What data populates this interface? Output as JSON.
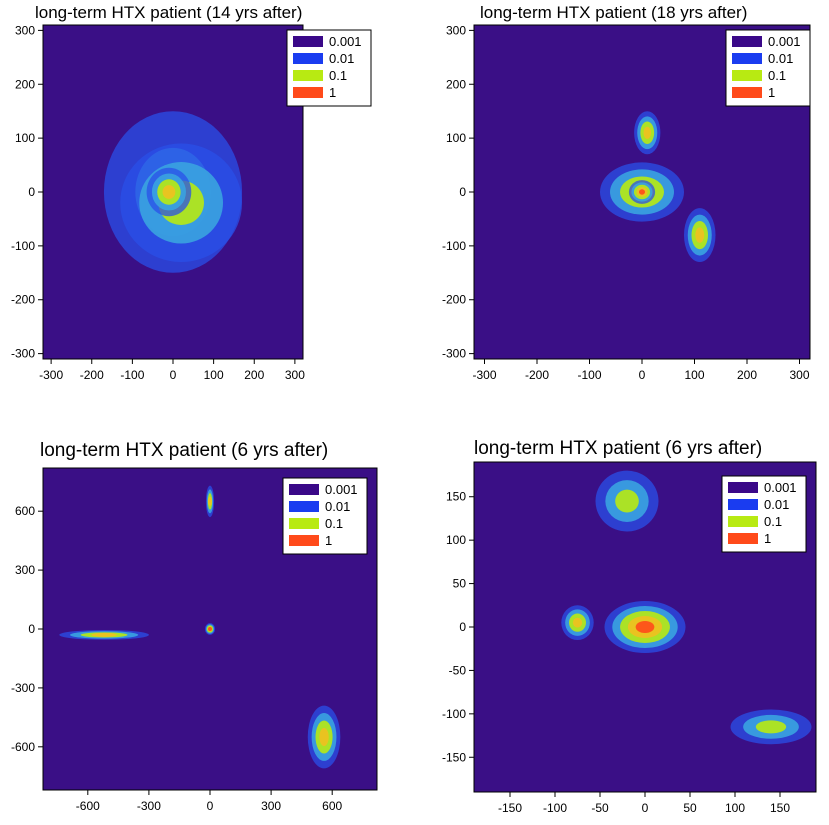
{
  "chart_data": [
    {
      "type": "heatmap",
      "title": "long-term  HTX patient (14 yrs after)",
      "xlim": [
        -320,
        320
      ],
      "ylim": [
        -310,
        310
      ],
      "xticks": [
        -300,
        -200,
        -100,
        0,
        100,
        200,
        300
      ],
      "yticks": [
        300,
        200,
        100,
        0,
        -100,
        -200,
        -300
      ],
      "legend": {
        "position": "top-right",
        "entries": [
          {
            "label": "0.001",
            "color": "#3a0888"
          },
          {
            "label": "0.01",
            "color": "#1a3cf0"
          },
          {
            "label": "0.1",
            "color": "#b8ea12"
          },
          {
            "label": "1",
            "color": "#ff4a1a"
          }
        ]
      },
      "background_color": "#3a0f86",
      "clusters": [
        {
          "x": 0,
          "y": 0,
          "sx": 170,
          "sy": 150,
          "level": "0.001"
        },
        {
          "x": 20,
          "y": -20,
          "sx": 150,
          "sy": 110,
          "level": "0.01"
        },
        {
          "x": -10,
          "y": 0,
          "sx": 55,
          "sy": 45,
          "level": "0.1"
        }
      ]
    },
    {
      "type": "heatmap",
      "title": "long-term  HTX patient (18 yrs after)",
      "xlim": [
        -320,
        320
      ],
      "ylim": [
        -310,
        310
      ],
      "xticks": [
        -300,
        -200,
        -100,
        0,
        100,
        200,
        300
      ],
      "yticks": [
        300,
        200,
        100,
        0,
        -100,
        -200,
        -300
      ],
      "legend": {
        "position": "top-right",
        "entries": [
          {
            "label": "0.001",
            "color": "#3a0888"
          },
          {
            "label": "0.01",
            "color": "#1a3cf0"
          },
          {
            "label": "0.1",
            "color": "#b8ea12"
          },
          {
            "label": "1",
            "color": "#ff4a1a"
          }
        ]
      },
      "background_color": "#3a0f86",
      "clusters": [
        {
          "x": 0,
          "y": 0,
          "sx": 80,
          "sy": 55,
          "level": "0.1"
        },
        {
          "x": 0,
          "y": 0,
          "sx": 25,
          "sy": 22,
          "level": "1"
        },
        {
          "x": 10,
          "y": 110,
          "sx": 25,
          "sy": 40,
          "level": "0.1"
        },
        {
          "x": 110,
          "y": -80,
          "sx": 30,
          "sy": 50,
          "level": "0.1"
        }
      ]
    },
    {
      "type": "heatmap",
      "title": "long-term HTX patient (6 yrs after)",
      "xlim": [
        -820,
        820
      ],
      "ylim": [
        -820,
        820
      ],
      "xticks": [
        -600,
        -300,
        0,
        300,
        600
      ],
      "yticks": [
        600,
        300,
        0,
        -300,
        -600
      ],
      "legend": {
        "position": "top-right",
        "entries": [
          {
            "label": "0.001",
            "color": "#3a0888"
          },
          {
            "label": "0.01",
            "color": "#1a3cf0"
          },
          {
            "label": "0.1",
            "color": "#b8ea12"
          },
          {
            "label": "1",
            "color": "#ff4a1a"
          }
        ]
      },
      "background_color": "#3a0f86",
      "clusters": [
        {
          "x": 0,
          "y": 0,
          "sx": 25,
          "sy": 30,
          "level": "1"
        },
        {
          "x": 0,
          "y": 650,
          "sx": 20,
          "sy": 80,
          "level": "0.1"
        },
        {
          "x": -520,
          "y": -30,
          "sx": 220,
          "sy": 25,
          "level": "0.1"
        },
        {
          "x": 560,
          "y": -550,
          "sx": 80,
          "sy": 160,
          "level": "0.1"
        }
      ]
    },
    {
      "type": "heatmap",
      "title": "long-term HTX patient (6 yrs after)",
      "xlim": [
        -190,
        190
      ],
      "ylim": [
        -190,
        190
      ],
      "xticks": [
        -150,
        -100,
        -50,
        0,
        50,
        100,
        150
      ],
      "yticks": [
        150,
        100,
        50,
        0,
        -50,
        -100,
        -150
      ],
      "legend": {
        "position": "top-right",
        "entries": [
          {
            "label": "0.001",
            "color": "#3a0888"
          },
          {
            "label": "0.01",
            "color": "#1a3cf0"
          },
          {
            "label": "0.1",
            "color": "#b8ea12"
          },
          {
            "label": "1",
            "color": "#ff4a1a"
          }
        ]
      },
      "background_color": "#3a0f86",
      "clusters": [
        {
          "x": 0,
          "y": 0,
          "sx": 45,
          "sy": 30,
          "level": "1"
        },
        {
          "x": -75,
          "y": 5,
          "sx": 18,
          "sy": 20,
          "level": "0.1"
        },
        {
          "x": 140,
          "y": -115,
          "sx": 45,
          "sy": 20,
          "level": "0.01"
        },
        {
          "x": -20,
          "y": 145,
          "sx": 35,
          "sy": 35,
          "level": "0.01"
        }
      ]
    }
  ]
}
